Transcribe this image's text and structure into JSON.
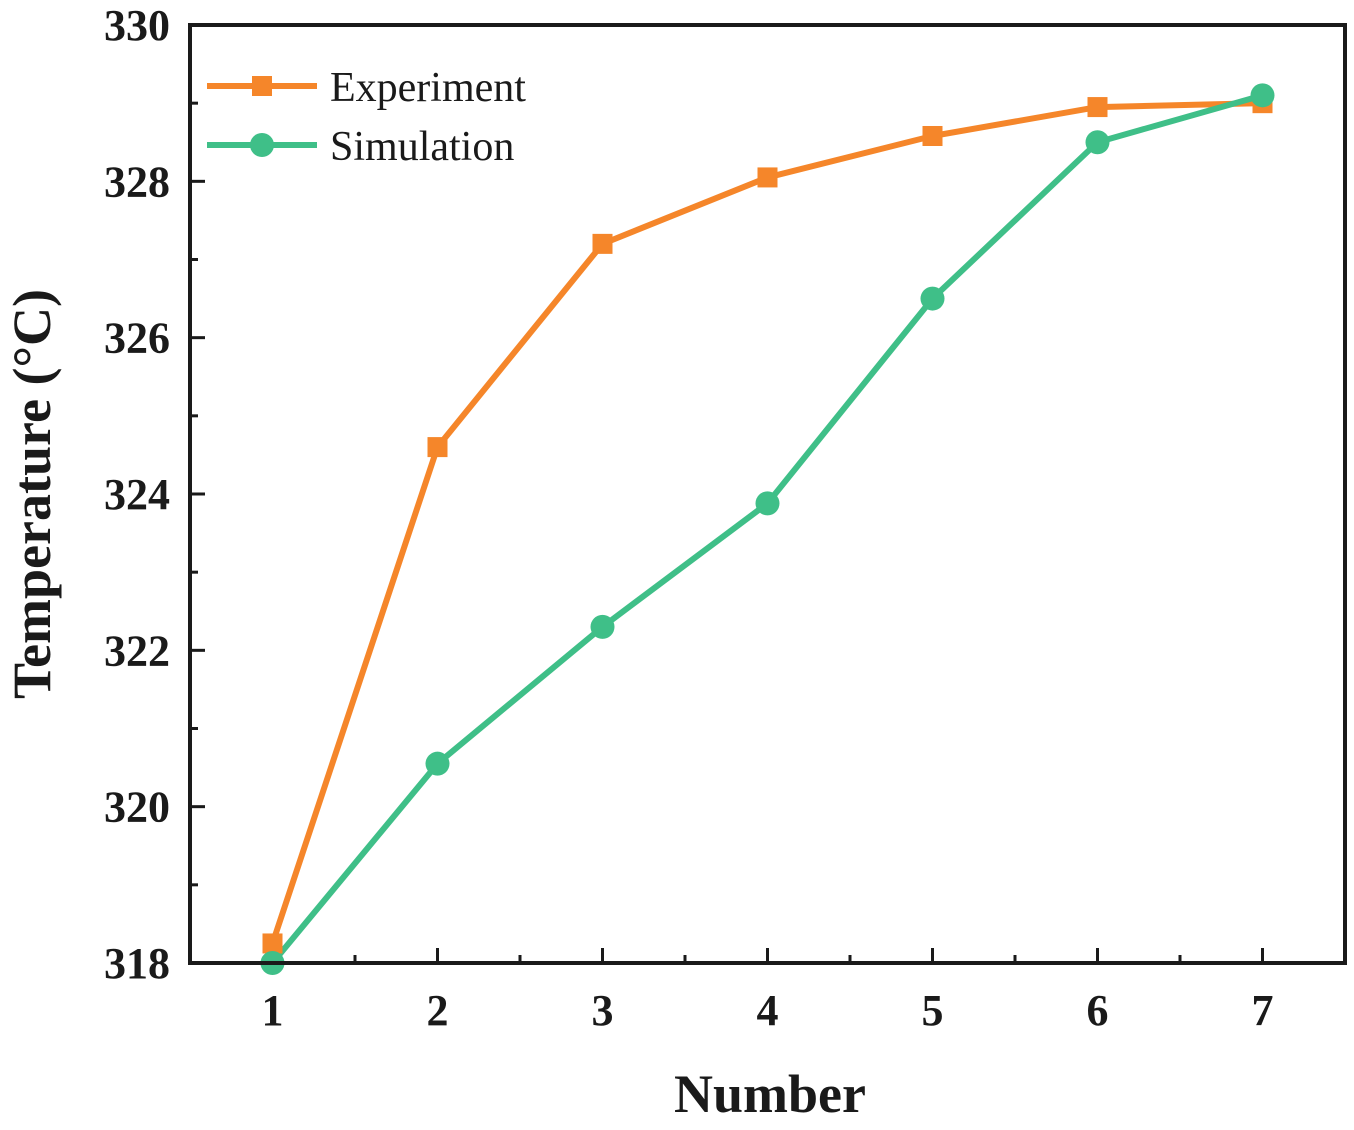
{
  "chart_data": {
    "type": "line",
    "title": "",
    "xlabel": "Number",
    "ylabel": "Temperature (°C)",
    "x": [
      1,
      2,
      3,
      4,
      5,
      6,
      7
    ],
    "xlim": [
      0.5,
      7.5
    ],
    "ylim": [
      318,
      330
    ],
    "xticks": [
      "1",
      "2",
      "3",
      "4",
      "5",
      "6",
      "7"
    ],
    "yticks": [
      "318",
      "320",
      "322",
      "324",
      "326",
      "328",
      "330"
    ],
    "grid": false,
    "legend_position": "top-left",
    "series": [
      {
        "name": "Experiment",
        "color": "#f5862a",
        "marker": "square",
        "values": [
          318.25,
          324.6,
          327.2,
          328.05,
          328.58,
          328.95,
          329.0
        ]
      },
      {
        "name": "Simulation",
        "color": "#3fbf88",
        "marker": "circle",
        "values": [
          318.0,
          320.55,
          322.3,
          323.88,
          326.5,
          328.5,
          329.1
        ]
      }
    ]
  }
}
